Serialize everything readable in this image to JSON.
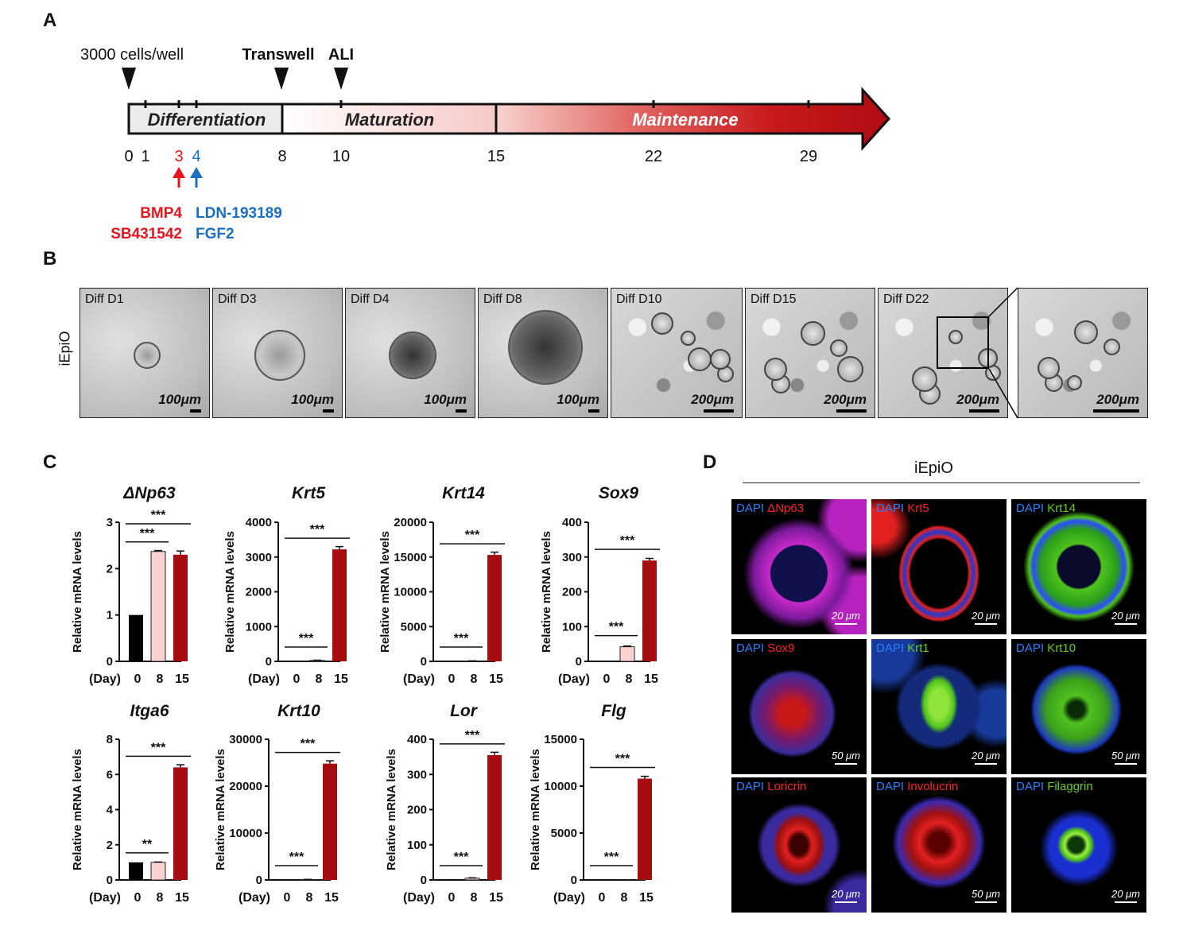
{
  "panels": {
    "a": "A",
    "b": "B",
    "c": "C",
    "d": "D"
  },
  "timeline": {
    "markers": [
      "3000 cells/well",
      "Transwell",
      "ALI"
    ],
    "phases": [
      "Differentiation",
      "Maturation",
      "Maintenance"
    ],
    "ticks": [
      "0",
      "1",
      "3",
      "4",
      "8",
      "10",
      "15",
      "22",
      "29"
    ],
    "treatments_day3": [
      "BMP4",
      "SB431542"
    ],
    "treatments_day4": [
      "LDN-193189",
      "FGF2"
    ],
    "colors": {
      "red": "#e8141e",
      "blue": "#1a6fc4",
      "dark_red": "#b00d12"
    }
  },
  "micrographs": {
    "row_label": "iEpiO",
    "tiles": [
      {
        "label": "Diff D1",
        "scale": "100μm"
      },
      {
        "label": "Diff D3",
        "scale": "100μm"
      },
      {
        "label": "Diff D4",
        "scale": "100μm"
      },
      {
        "label": "Diff D8",
        "scale": "100μm"
      },
      {
        "label": "Diff D10",
        "scale": "200μm"
      },
      {
        "label": "Diff D15",
        "scale": "200μm"
      },
      {
        "label": "Diff D22",
        "scale": "200μm"
      },
      {
        "label": "",
        "scale": "200μm"
      }
    ]
  },
  "chart_data": [
    {
      "type": "bar",
      "title": "ΔNp63",
      "ylabel": "Relative mRNA levels",
      "xlabel": "(Day)",
      "categories": [
        "0",
        "8",
        "15"
      ],
      "values": [
        1.0,
        2.37,
        2.3
      ],
      "errors": [
        0,
        0.02,
        0.08
      ],
      "ylim": [
        0,
        3
      ],
      "yticks": [
        "0",
        "1",
        "2",
        "3"
      ],
      "sig": [
        {
          "label": "***",
          "from": 0,
          "to": 1
        },
        {
          "label": "***",
          "from": 0,
          "to": 2
        }
      ]
    },
    {
      "type": "bar",
      "title": "Krt5",
      "ylabel": "Relative mRNA levels",
      "xlabel": "(Day)",
      "categories": [
        "0",
        "8",
        "15"
      ],
      "values": [
        1,
        30,
        3220
      ],
      "errors": [
        0,
        5,
        80
      ],
      "ylim": [
        0,
        4000
      ],
      "yticks": [
        "0",
        "1000",
        "2000",
        "3000",
        "4000"
      ],
      "sig": [
        {
          "label": "***",
          "from": 0,
          "to": 1
        },
        {
          "label": "***",
          "from": 0,
          "to": 2
        }
      ]
    },
    {
      "type": "bar",
      "title": "Krt14",
      "ylabel": "Relative mRNA levels",
      "xlabel": "(Day)",
      "categories": [
        "0",
        "8",
        "15"
      ],
      "values": [
        1,
        60,
        15300
      ],
      "errors": [
        0,
        10,
        400
      ],
      "ylim": [
        0,
        20000
      ],
      "yticks": [
        "0",
        "5000",
        "10000",
        "15000",
        "20000"
      ],
      "sig": [
        {
          "label": "***",
          "from": 0,
          "to": 1
        },
        {
          "label": "***",
          "from": 0,
          "to": 2
        }
      ]
    },
    {
      "type": "bar",
      "title": "Sox9",
      "ylabel": "Relative mRNA levels",
      "xlabel": "(Day)",
      "categories": [
        "0",
        "8",
        "15"
      ],
      "values": [
        1,
        42,
        290
      ],
      "errors": [
        0,
        2,
        6
      ],
      "ylim": [
        0,
        400
      ],
      "yticks": [
        "0",
        "100",
        "200",
        "300",
        "400"
      ],
      "sig": [
        {
          "label": "***",
          "from": 0,
          "to": 1
        },
        {
          "label": "***",
          "from": 0,
          "to": 2
        }
      ]
    },
    {
      "type": "bar",
      "title": "Itga6",
      "ylabel": "Relative mRNA levels",
      "xlabel": "(Day)",
      "categories": [
        "0",
        "8",
        "15"
      ],
      "values": [
        1.0,
        1.0,
        6.4
      ],
      "errors": [
        0,
        0.02,
        0.15
      ],
      "ylim": [
        0,
        8
      ],
      "yticks": [
        "0",
        "2",
        "4",
        "6",
        "8"
      ],
      "sig": [
        {
          "label": "**",
          "from": 0,
          "to": 1
        },
        {
          "label": "***",
          "from": 0,
          "to": 2
        }
      ]
    },
    {
      "type": "bar",
      "title": "Krt10",
      "ylabel": "Relative mRNA levels",
      "xlabel": "(Day)",
      "categories": [
        "0",
        "8",
        "15"
      ],
      "values": [
        1,
        100,
        24800
      ],
      "errors": [
        0,
        20,
        600
      ],
      "ylim": [
        0,
        30000
      ],
      "yticks": [
        "0",
        "10000",
        "20000",
        "30000"
      ],
      "sig": [
        {
          "label": "***",
          "from": 0,
          "to": 1
        },
        {
          "label": "***",
          "from": 0,
          "to": 2
        }
      ]
    },
    {
      "type": "bar",
      "title": "Lor",
      "ylabel": "Relative mRNA levels",
      "xlabel": "(Day)",
      "categories": [
        "0",
        "8",
        "15"
      ],
      "values": [
        1,
        5,
        355
      ],
      "errors": [
        0,
        1,
        8
      ],
      "ylim": [
        0,
        400
      ],
      "yticks": [
        "0",
        "100",
        "200",
        "300",
        "400"
      ],
      "sig": [
        {
          "label": "***",
          "from": 0,
          "to": 1
        },
        {
          "label": "***",
          "from": 0,
          "to": 2
        }
      ]
    },
    {
      "type": "bar",
      "title": "Flg",
      "ylabel": "Relative mRNA levels",
      "xlabel": "(Day)",
      "categories": [
        "0",
        "8",
        "15"
      ],
      "values": [
        1,
        20,
        10800
      ],
      "errors": [
        0,
        5,
        250
      ],
      "ylim": [
        0,
        15000
      ],
      "yticks": [
        "0",
        "5000",
        "10000",
        "15000"
      ],
      "sig": [
        {
          "label": "***",
          "from": 0,
          "to": 1
        },
        {
          "label": "***",
          "from": 0,
          "to": 2
        }
      ]
    }
  ],
  "bar_colors": [
    "#000000",
    "#fbd2d2",
    "#a50d10"
  ],
  "immunofluorescence": {
    "title": "iEpiO",
    "tiles": [
      {
        "dapi": "DAPI",
        "marker": "ΔNp63",
        "marker_color": "#ff2222",
        "scale": "20 μm",
        "kind": "nuclear"
      },
      {
        "dapi": "DAPI",
        "marker": "Krt5",
        "marker_color": "#ff2222",
        "scale": "20 μm",
        "kind": "red-ring"
      },
      {
        "dapi": "DAPI",
        "marker": "Krt14",
        "marker_color": "#66cc22",
        "scale": "20 μm",
        "kind": "green-ring"
      },
      {
        "dapi": "DAPI",
        "marker": "Sox9",
        "marker_color": "#ff2222",
        "scale": "50 μm",
        "kind": "red-disc"
      },
      {
        "dapi": "DAPI",
        "marker": "Krt1",
        "marker_color": "#66cc22",
        "scale": "20 μm",
        "kind": "green-center"
      },
      {
        "dapi": "DAPI",
        "marker": "Krt10",
        "marker_color": "#66cc22",
        "scale": "50 μm",
        "kind": "green-disc"
      },
      {
        "dapi": "DAPI",
        "marker": "Loricrin",
        "marker_color": "#ff2222",
        "scale": "20 μm",
        "kind": "red-core"
      },
      {
        "dapi": "DAPI",
        "marker": "Involucrin",
        "marker_color": "#ff2222",
        "scale": "50 μm",
        "kind": "red-core-large"
      },
      {
        "dapi": "DAPI",
        "marker": "Filaggrin",
        "marker_color": "#66cc22",
        "scale": "20 μm",
        "kind": "green-core"
      }
    ],
    "dapi_color": "#2a7fff"
  }
}
